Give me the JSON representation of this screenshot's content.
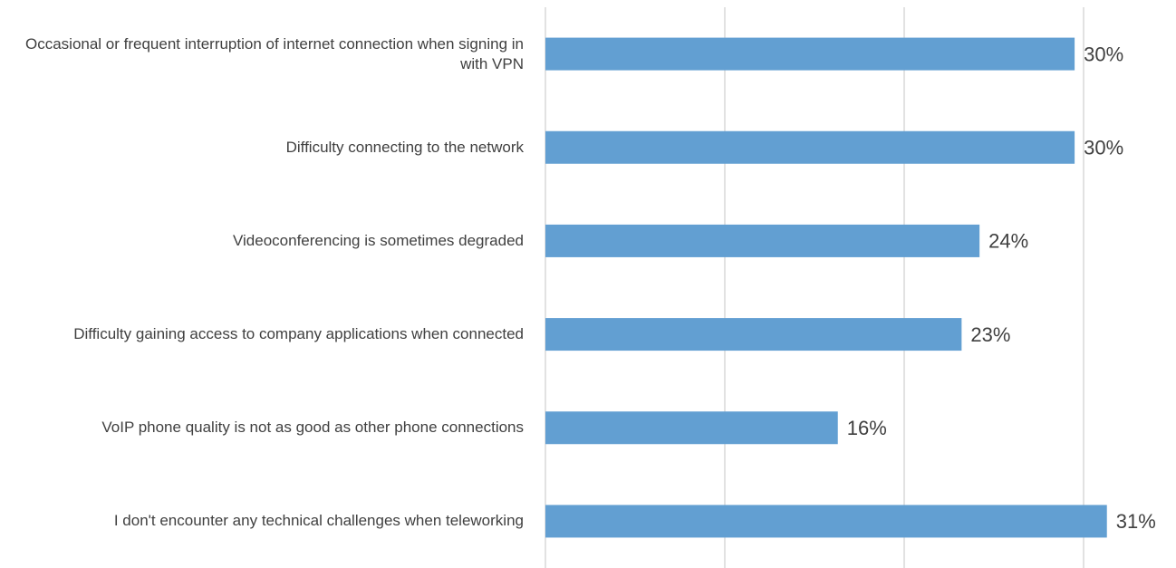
{
  "chart_data": {
    "type": "hbar",
    "categories": [
      "Occasional or frequent interruption of internet connection when signing in with VPN",
      "Difficulty connecting to the network",
      "Videoconferencing is sometimes degraded",
      "Difficulty gaining access to company applications when connected",
      "VoIP phone quality is not as good as other phone connections",
      "I don't encounter any technical challenges when teleworking"
    ],
    "values": [
      29.5,
      29.5,
      24.2,
      23.2,
      16.3,
      31.3
    ],
    "value_labels": [
      "30%",
      "30%",
      "24%",
      "23%",
      "16%",
      "31%"
    ],
    "color": "#629fd2",
    "xlim": [
      0,
      35
    ],
    "xticks": [
      0,
      10,
      20,
      30
    ],
    "grid": true
  }
}
